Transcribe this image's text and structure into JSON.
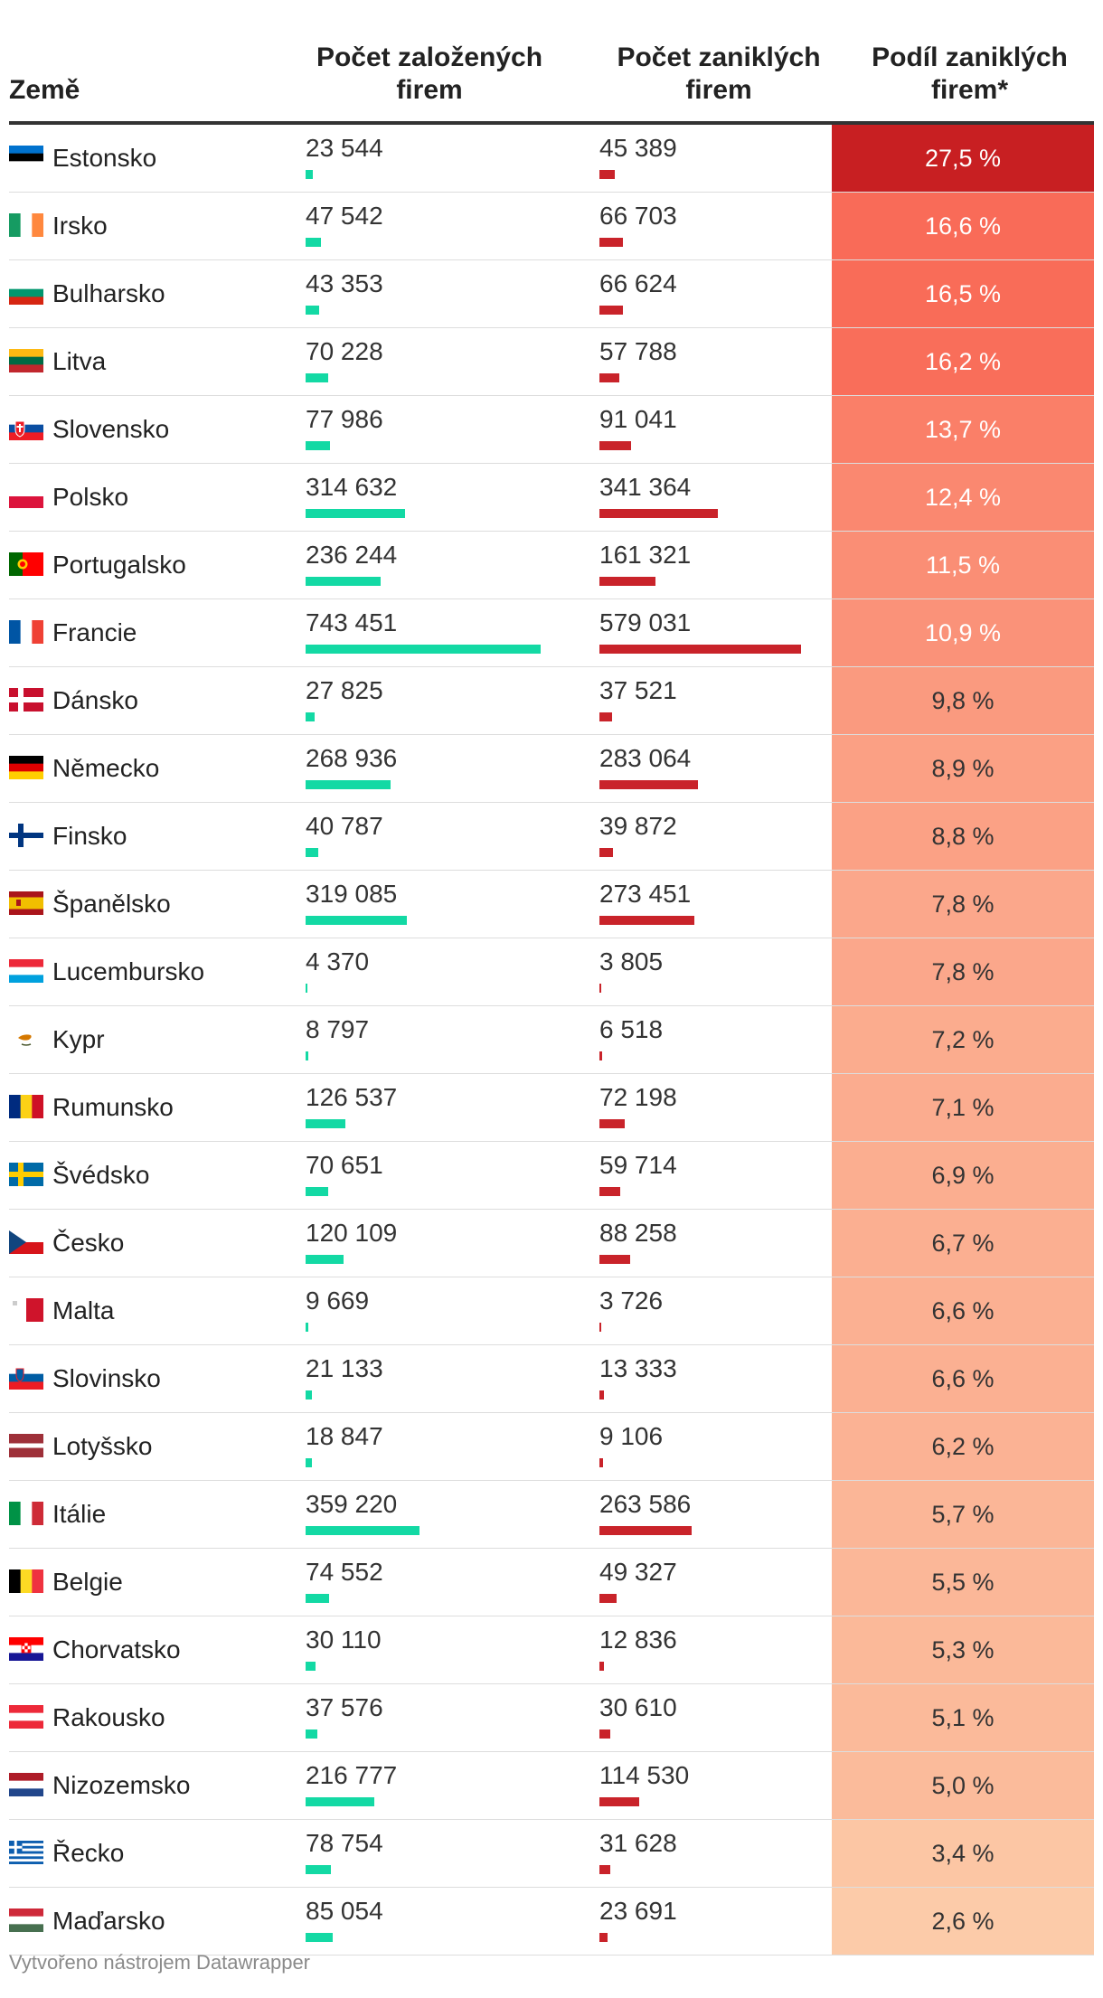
{
  "chart_data": {
    "type": "table",
    "columns": [
      "Země",
      "Počet založených firem",
      "Počet zaniklých firem",
      "Podíl zaniklých firem*"
    ],
    "rows": [
      {
        "country": "Estonsko",
        "flag": "flag-estonia",
        "founded": "23 544",
        "closed": "45 389",
        "share": "27,5 %",
        "founded_value": 23544,
        "closed_value": 45389,
        "share_value": 27.5
      },
      {
        "country": "Irsko",
        "flag": "flag-ireland",
        "founded": "47 542",
        "closed": "66 703",
        "share": "16,6 %",
        "founded_value": 47542,
        "closed_value": 66703,
        "share_value": 16.6
      },
      {
        "country": "Bulharsko",
        "flag": "flag-bulgaria",
        "founded": "43 353",
        "closed": "66 624",
        "share": "16,5 %",
        "founded_value": 43353,
        "closed_value": 66624,
        "share_value": 16.5
      },
      {
        "country": "Litva",
        "flag": "flag-lithuania",
        "founded": "70 228",
        "closed": "57 788",
        "share": "16,2 %",
        "founded_value": 70228,
        "closed_value": 57788,
        "share_value": 16.2
      },
      {
        "country": "Slovensko",
        "flag": "flag-slovakia",
        "founded": "77 986",
        "closed": "91 041",
        "share": "13,7 %",
        "founded_value": 77986,
        "closed_value": 91041,
        "share_value": 13.7
      },
      {
        "country": "Polsko",
        "flag": "flag-poland",
        "founded": "314 632",
        "closed": "341 364",
        "share": "12,4 %",
        "founded_value": 314632,
        "closed_value": 341364,
        "share_value": 12.4
      },
      {
        "country": "Portugalsko",
        "flag": "flag-portugal",
        "founded": "236 244",
        "closed": "161 321",
        "share": "11,5 %",
        "founded_value": 236244,
        "closed_value": 161321,
        "share_value": 11.5
      },
      {
        "country": "Francie",
        "flag": "flag-france",
        "founded": "743 451",
        "closed": "579 031",
        "share": "10,9 %",
        "founded_value": 743451,
        "closed_value": 579031,
        "share_value": 10.9
      },
      {
        "country": "Dánsko",
        "flag": "flag-denmark",
        "founded": "27 825",
        "closed": "37 521",
        "share": "9,8 %",
        "founded_value": 27825,
        "closed_value": 37521,
        "share_value": 9.8
      },
      {
        "country": "Německo",
        "flag": "flag-germany",
        "founded": "268 936",
        "closed": "283 064",
        "share": "8,9 %",
        "founded_value": 268936,
        "closed_value": 283064,
        "share_value": 8.9
      },
      {
        "country": "Finsko",
        "flag": "flag-finland",
        "founded": "40 787",
        "closed": "39 872",
        "share": "8,8 %",
        "founded_value": 40787,
        "closed_value": 39872,
        "share_value": 8.8
      },
      {
        "country": "Španělsko",
        "flag": "flag-spain",
        "founded": "319 085",
        "closed": "273 451",
        "share": "7,8 %",
        "founded_value": 319085,
        "closed_value": 273451,
        "share_value": 7.8
      },
      {
        "country": "Lucembursko",
        "flag": "flag-luxembourg",
        "founded": "4 370",
        "closed": "3 805",
        "share": "7,8 %",
        "founded_value": 4370,
        "closed_value": 3805,
        "share_value": 7.8
      },
      {
        "country": "Kypr",
        "flag": "flag-cyprus",
        "founded": "8 797",
        "closed": "6 518",
        "share": "7,2 %",
        "founded_value": 8797,
        "closed_value": 6518,
        "share_value": 7.2
      },
      {
        "country": "Rumunsko",
        "flag": "flag-romania",
        "founded": "126 537",
        "closed": "72 198",
        "share": "7,1 %",
        "founded_value": 126537,
        "closed_value": 72198,
        "share_value": 7.1
      },
      {
        "country": "Švédsko",
        "flag": "flag-sweden",
        "founded": "70 651",
        "closed": "59 714",
        "share": "6,9 %",
        "founded_value": 70651,
        "closed_value": 59714,
        "share_value": 6.9
      },
      {
        "country": "Česko",
        "flag": "flag-czechia",
        "founded": "120 109",
        "closed": "88 258",
        "share": "6,7 %",
        "founded_value": 120109,
        "closed_value": 88258,
        "share_value": 6.7
      },
      {
        "country": "Malta",
        "flag": "flag-malta",
        "founded": "9 669",
        "closed": "3 726",
        "share": "6,6 %",
        "founded_value": 9669,
        "closed_value": 3726,
        "share_value": 6.6
      },
      {
        "country": "Slovinsko",
        "flag": "flag-slovenia",
        "founded": "21 133",
        "closed": "13 333",
        "share": "6,6 %",
        "founded_value": 21133,
        "closed_value": 13333,
        "share_value": 6.6
      },
      {
        "country": "Lotyšsko",
        "flag": "flag-latvia",
        "founded": "18 847",
        "closed": "9 106",
        "share": "6,2 %",
        "founded_value": 18847,
        "closed_value": 9106,
        "share_value": 6.2
      },
      {
        "country": "Itálie",
        "flag": "flag-italy",
        "founded": "359 220",
        "closed": "263 586",
        "share": "5,7 %",
        "founded_value": 359220,
        "closed_value": 263586,
        "share_value": 5.7
      },
      {
        "country": "Belgie",
        "flag": "flag-belgium",
        "founded": "74 552",
        "closed": "49 327",
        "share": "5,5 %",
        "founded_value": 74552,
        "closed_value": 49327,
        "share_value": 5.5
      },
      {
        "country": "Chorvatsko",
        "flag": "flag-croatia",
        "founded": "30 110",
        "closed": "12 836",
        "share": "5,3 %",
        "founded_value": 30110,
        "closed_value": 12836,
        "share_value": 5.3
      },
      {
        "country": "Rakousko",
        "flag": "flag-austria",
        "founded": "37 576",
        "closed": "30 610",
        "share": "5,1 %",
        "founded_value": 37576,
        "closed_value": 30610,
        "share_value": 5.1
      },
      {
        "country": "Nizozemsko",
        "flag": "flag-netherlands",
        "founded": "216 777",
        "closed": "114 530",
        "share": "5,0 %",
        "founded_value": 216777,
        "closed_value": 114530,
        "share_value": 5.0
      },
      {
        "country": "Řecko",
        "flag": "flag-greece",
        "founded": "78 754",
        "closed": "31 628",
        "share": "3,4 %",
        "founded_value": 78754,
        "closed_value": 31628,
        "share_value": 3.4
      },
      {
        "country": "Maďarsko",
        "flag": "flag-hungary",
        "founded": "85 054",
        "closed": "23 691",
        "share": "2,6 %",
        "founded_value": 85054,
        "closed_value": 23691,
        "share_value": 2.6
      }
    ],
    "bar_colors": {
      "founded": "#13d9a4",
      "closed": "#c9232a"
    },
    "share_color_scale": {
      "low": "#fccba9",
      "mid": "#f96c58",
      "high": "#c81f22"
    }
  },
  "header": {
    "country": "Země",
    "founded": "Počet založených\nfirem",
    "closed": "Počet zaniklých\nfirem",
    "share": "Podíl zaniklých\nfirem*"
  },
  "footer": "Vytvořeno nástrojem Datawrapper"
}
